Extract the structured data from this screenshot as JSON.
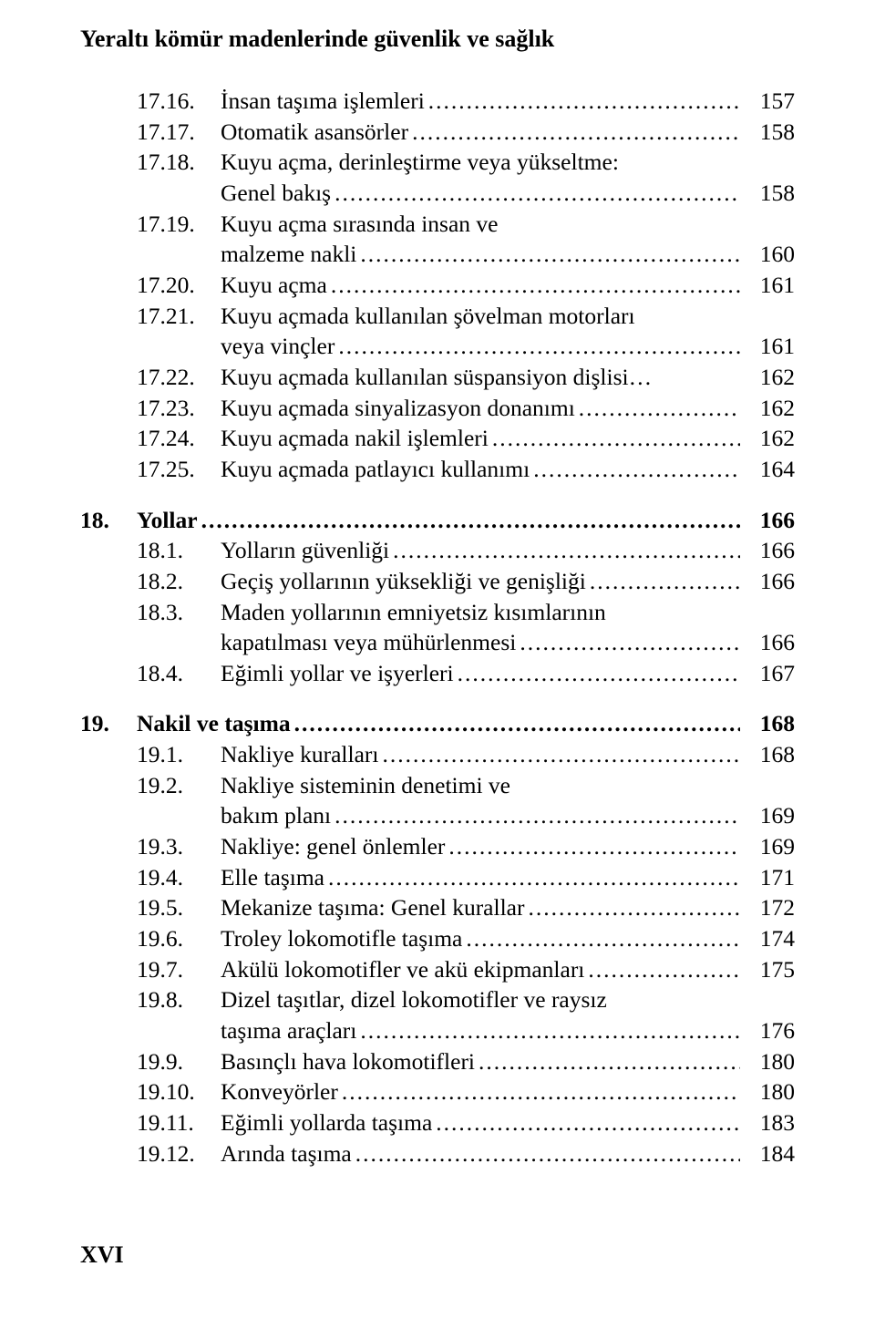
{
  "runningHead": "Yeraltı kömür madenlerinde güvenlik ve sağlık",
  "pageFooter": "XVI",
  "style": {
    "fontFamily": "Times New Roman",
    "textColor": "#000000",
    "backgroundColor": "#ffffff",
    "bodyFontSize": 25.5,
    "headFontSize": 26,
    "lineHeight": 1.32,
    "subIndentPx": 62,
    "subNumWidthPx": 92,
    "mainNumWidthPx": 62
  },
  "entries": [
    {
      "kind": "sub",
      "num": "17.16.",
      "text": "İnsan taşıma işlemleri",
      "page": "157"
    },
    {
      "kind": "sub",
      "num": "17.17.",
      "text": "Otomatik asansörler",
      "page": "158"
    },
    {
      "kind": "sub",
      "num": "17.18.",
      "text": "Kuyu açma, derinleştirme veya yükseltme:",
      "page": ""
    },
    {
      "kind": "cont",
      "text": "Genel bakış",
      "page": "158"
    },
    {
      "kind": "sub",
      "num": "17.19.",
      "text": "Kuyu açma sırasında insan ve",
      "page": ""
    },
    {
      "kind": "cont",
      "text": "malzeme nakli",
      "page": "160"
    },
    {
      "kind": "sub",
      "num": "17.20.",
      "text": "Kuyu açma",
      "page": "161"
    },
    {
      "kind": "sub",
      "num": "17.21.",
      "text": "Kuyu açmada kullanılan şövelman motorları",
      "page": ""
    },
    {
      "kind": "cont",
      "text": "veya vinçler",
      "page": "161"
    },
    {
      "kind": "sub",
      "num": "17.22.",
      "text": "Kuyu açmada kullanılan süspansiyon dişlisi",
      "no_leader": true,
      "ellipsis": true,
      "page": "162"
    },
    {
      "kind": "sub",
      "num": "17.23.",
      "text": "Kuyu açmada sinyalizasyon donanımı",
      "page": "162"
    },
    {
      "kind": "sub",
      "num": "17.24.",
      "text": "Kuyu açmada nakil işlemleri",
      "page": "162"
    },
    {
      "kind": "sub",
      "num": "17.25.",
      "text": "Kuyu açmada patlayıcı kullanımı",
      "page": "164"
    },
    {
      "kind": "gap"
    },
    {
      "kind": "main",
      "num": "18.",
      "text": "Yollar",
      "page": "166",
      "bold": true
    },
    {
      "kind": "sub",
      "num": "18.1.",
      "text": "Yolların güvenliği",
      "page": "166"
    },
    {
      "kind": "sub",
      "num": "18.2.",
      "text": "Geçiş yollarının yüksekliği ve genişliği",
      "page": "166"
    },
    {
      "kind": "sub",
      "num": "18.3.",
      "text": "Maden yollarının emniyetsiz kısımlarının",
      "page": ""
    },
    {
      "kind": "cont",
      "text": "kapatılması veya mühürlenmesi",
      "page": "166"
    },
    {
      "kind": "sub",
      "num": "18.4.",
      "text": "Eğimli yollar ve işyerleri",
      "page": "167"
    },
    {
      "kind": "gap"
    },
    {
      "kind": "main",
      "num": "19.",
      "text": "Nakil ve taşıma",
      "page": "168",
      "bold": true
    },
    {
      "kind": "sub",
      "num": "19.1.",
      "text": "Nakliye kuralları",
      "page": "168"
    },
    {
      "kind": "sub",
      "num": "19.2.",
      "text": "Nakliye sisteminin denetimi ve",
      "page": ""
    },
    {
      "kind": "cont",
      "text": "bakım planı",
      "page": "169"
    },
    {
      "kind": "sub",
      "num": "19.3.",
      "text": "Nakliye: genel önlemler",
      "page": "169"
    },
    {
      "kind": "sub",
      "num": "19.4.",
      "text": "Elle taşıma",
      "page": "171"
    },
    {
      "kind": "sub",
      "num": "19.5.",
      "text": "Mekanize taşıma: Genel kurallar",
      "page": "172"
    },
    {
      "kind": "sub",
      "num": "19.6.",
      "text": "Troley lokomotifle taşıma",
      "page": "174"
    },
    {
      "kind": "sub",
      "num": "19.7.",
      "text": "Akülü lokomotifler ve akü ekipmanları",
      "page": "175"
    },
    {
      "kind": "sub",
      "num": "19.8.",
      "text": "Dizel taşıtlar, dizel lokomotifler ve raysız",
      "page": ""
    },
    {
      "kind": "cont",
      "text": "taşıma araçları",
      "page": "176"
    },
    {
      "kind": "sub",
      "num": "19.9.",
      "text": "Basınçlı hava lokomotifleri",
      "page": "180"
    },
    {
      "kind": "sub",
      "num": "19.10.",
      "text": "Konveyörler",
      "page": "180"
    },
    {
      "kind": "sub",
      "num": "19.11.",
      "text": "Eğimli yollarda taşıma",
      "page": "183"
    },
    {
      "kind": "sub",
      "num": "19.12.",
      "text": "Arında taşıma",
      "page": "184"
    }
  ]
}
